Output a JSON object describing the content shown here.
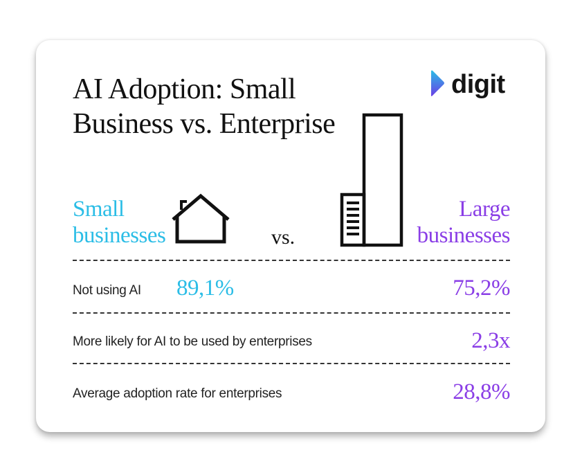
{
  "title": {
    "line1": "AI Adoption: Small",
    "line2": "Business vs. Enterprise"
  },
  "logo": {
    "text": "digit",
    "mark_icon": "play-chevron-icon",
    "colors": {
      "gradient_start": "#2bbde6",
      "gradient_end": "#6a3fe6"
    }
  },
  "comparison": {
    "small": {
      "line1": "Small",
      "line2": "businesses",
      "icon": "house-icon",
      "color": "#2bbde6"
    },
    "vs": "vs.",
    "large": {
      "line1": "Large",
      "line2": "businesses",
      "icon": "building-icon",
      "color": "#8a3ee6"
    }
  },
  "rows": [
    {
      "label": "Not using AI",
      "small_value": "89,1%",
      "large_value": "75,2%"
    },
    {
      "label": "More likely for AI to be used by enterprises",
      "large_value": "2,3x"
    },
    {
      "label": "Average adoption rate for enterprises",
      "large_value": "28,8%"
    }
  ]
}
